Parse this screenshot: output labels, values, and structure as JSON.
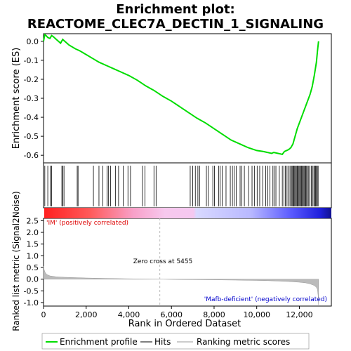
{
  "chart_data": {
    "type": "line",
    "title_line1": "Enrichment plot:",
    "title_line2": "REACTOME_CLEC7A_DECTIN_1_SIGNALING",
    "es_ylabel": "Enrichment score (ES)",
    "metric_ylabel": "Ranked list metric (Signal2Noise)",
    "xlabel": "Rank in Ordered Dataset",
    "xlim": [
      0,
      13500
    ],
    "es_ylim": [
      -0.64,
      0.04
    ],
    "metric_ylim": [
      -1.15,
      2.6
    ],
    "x_ticks": [
      0,
      2000,
      4000,
      6000,
      8000,
      10000,
      12000
    ],
    "x_tick_labels": [
      "0",
      "2,000",
      "4,000",
      "6,000",
      "8,000",
      "10,000",
      "12,000"
    ],
    "es_ticks": [
      0.0,
      -0.1,
      -0.2,
      -0.3,
      -0.4,
      -0.5,
      -0.6
    ],
    "es_tick_labels": [
      "0.0",
      "-0.1",
      "-0.2",
      "-0.3",
      "-0.4",
      "-0.5",
      "-0.6"
    ],
    "metric_ticks": [
      2.5,
      2.0,
      1.5,
      1.0,
      0.5,
      0.0,
      -0.5,
      -1.0
    ],
    "metric_tick_labels": [
      "2.5",
      "2.0",
      "1.5",
      "1.0",
      "0.5",
      "0.0",
      "-0.5",
      "-1.0"
    ],
    "enrichment_profile": {
      "x": [
        0,
        60,
        120,
        200,
        300,
        380,
        450,
        600,
        800,
        900,
        1000,
        1200,
        1500,
        1700,
        2000,
        2300,
        2600,
        3000,
        3300,
        3600,
        4000,
        4400,
        4800,
        5200,
        5600,
        6000,
        6400,
        6800,
        7200,
        7600,
        8000,
        8400,
        8800,
        9200,
        9600,
        10000,
        10300,
        10500,
        10700,
        10800,
        11000,
        11200,
        11300,
        11400,
        11500,
        11600,
        11700,
        11800,
        11900,
        12000,
        12100,
        12200,
        12300,
        12400,
        12500,
        12600,
        12700,
        12800,
        12850,
        12900
      ],
      "y": [
        0.0,
        0.035,
        0.03,
        0.02,
        0.015,
        0.03,
        0.025,
        0.01,
        -0.01,
        0.01,
        0.0,
        -0.02,
        -0.04,
        -0.05,
        -0.07,
        -0.09,
        -0.11,
        -0.13,
        -0.145,
        -0.16,
        -0.18,
        -0.205,
        -0.235,
        -0.26,
        -0.29,
        -0.315,
        -0.345,
        -0.375,
        -0.405,
        -0.43,
        -0.46,
        -0.49,
        -0.52,
        -0.54,
        -0.56,
        -0.575,
        -0.58,
        -0.585,
        -0.59,
        -0.585,
        -0.59,
        -0.595,
        -0.58,
        -0.575,
        -0.57,
        -0.56,
        -0.54,
        -0.5,
        -0.46,
        -0.43,
        -0.4,
        -0.37,
        -0.34,
        -0.31,
        -0.28,
        -0.24,
        -0.18,
        -0.11,
        -0.05,
        0.0
      ]
    },
    "hits": [
      60,
      200,
      320,
      380,
      860,
      900,
      960,
      1580,
      1620,
      2340,
      2600,
      2780,
      2980,
      3040,
      3140,
      3380,
      3520,
      3740,
      3960,
      4080,
      4640,
      4760,
      5180,
      5280,
      6880,
      7000,
      7120,
      7240,
      7320,
      7640,
      7720,
      7940,
      8020,
      8220,
      8280,
      8380,
      8560,
      8760,
      8860,
      8940,
      9040,
      9220,
      9300,
      9420,
      9620,
      9780,
      9900,
      10020,
      10140,
      10280,
      10420,
      10520,
      10620,
      10760,
      10820,
      10900,
      11060,
      11200,
      11280,
      11340,
      11420,
      11480,
      11560,
      11620,
      11660,
      11700,
      11740,
      11780,
      11820,
      11860,
      11900,
      11940,
      11980,
      12020,
      12060,
      12100,
      12140,
      12180,
      12220,
      12260,
      12300,
      12340,
      12380,
      12440,
      12500,
      12560,
      12620,
      12680,
      12720,
      12760,
      12800,
      12840,
      12880
    ],
    "metric": {
      "x": [
        0,
        30,
        80,
        150,
        300,
        600,
        1000,
        2000,
        3000,
        4000,
        4500,
        5000,
        5455,
        6000,
        7000,
        8000,
        9000,
        10000,
        10500,
        11000,
        11500,
        12000,
        12300,
        12500,
        12700,
        12800,
        12850,
        12880,
        12900
      ],
      "y": [
        0.55,
        0.4,
        0.28,
        0.2,
        0.14,
        0.1,
        0.08,
        0.05,
        0.03,
        0.015,
        0.01,
        0.005,
        0.0,
        -0.01,
        -0.02,
        -0.03,
        -0.04,
        -0.055,
        -0.065,
        -0.08,
        -0.1,
        -0.13,
        -0.16,
        -0.2,
        -0.27,
        -0.35,
        -0.45,
        -0.7,
        -1.1
      ]
    },
    "zero_cross_label": "Zero cross at 5455",
    "zero_cross_x": 5455,
    "pos_label": "'IM' (positively correlated)",
    "neg_label": "'Mafb-deficient' (negatively correlated)",
    "legend": {
      "placement": "bottom",
      "items": [
        "Enrichment profile",
        "Hits",
        "Ranking metric scores"
      ]
    },
    "colors": {
      "profile": "#00dd00",
      "hits": "#000000",
      "metric": "#bbbbbb",
      "pos_label": "#dd0000",
      "neg_label": "#0000cc",
      "zero_line": "#bbbbbb"
    }
  }
}
